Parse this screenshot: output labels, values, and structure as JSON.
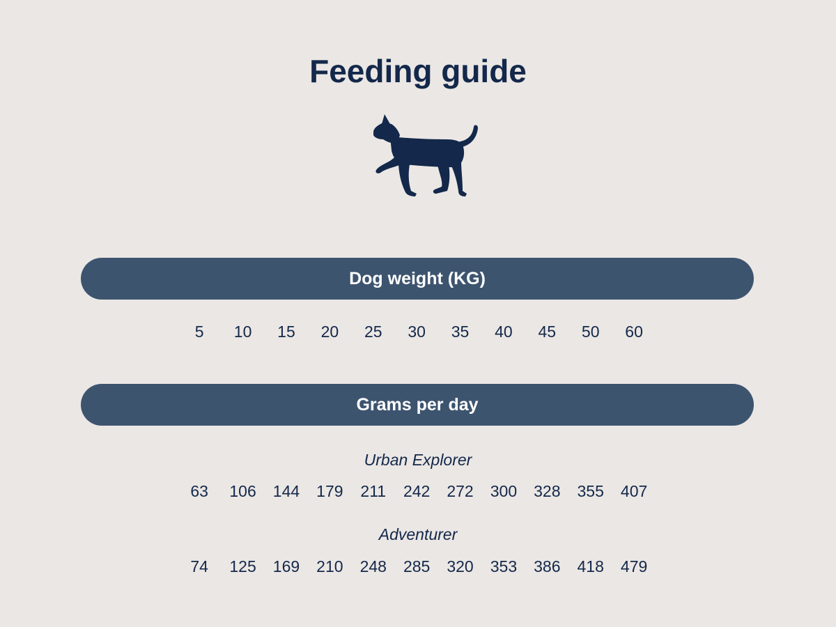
{
  "title": "Feeding guide",
  "icon": "dog-silhouette-icon",
  "colors": {
    "background": "#ebe7e4",
    "navy": "#13284a",
    "pill": "#3d546f"
  },
  "weight_section": {
    "label": "Dog weight (KG)",
    "values": [
      "5",
      "10",
      "15",
      "20",
      "25",
      "30",
      "35",
      "40",
      "45",
      "50",
      "60"
    ]
  },
  "grams_section": {
    "label": "Grams per day",
    "products": [
      {
        "name": "Urban Explorer",
        "values": [
          "63",
          "106",
          "144",
          "179",
          "211",
          "242",
          "272",
          "300",
          "328",
          "355",
          "407"
        ]
      },
      {
        "name": "Adventurer",
        "values": [
          "74",
          "125",
          "169",
          "210",
          "248",
          "285",
          "320",
          "353",
          "386",
          "418",
          "479"
        ]
      }
    ]
  }
}
